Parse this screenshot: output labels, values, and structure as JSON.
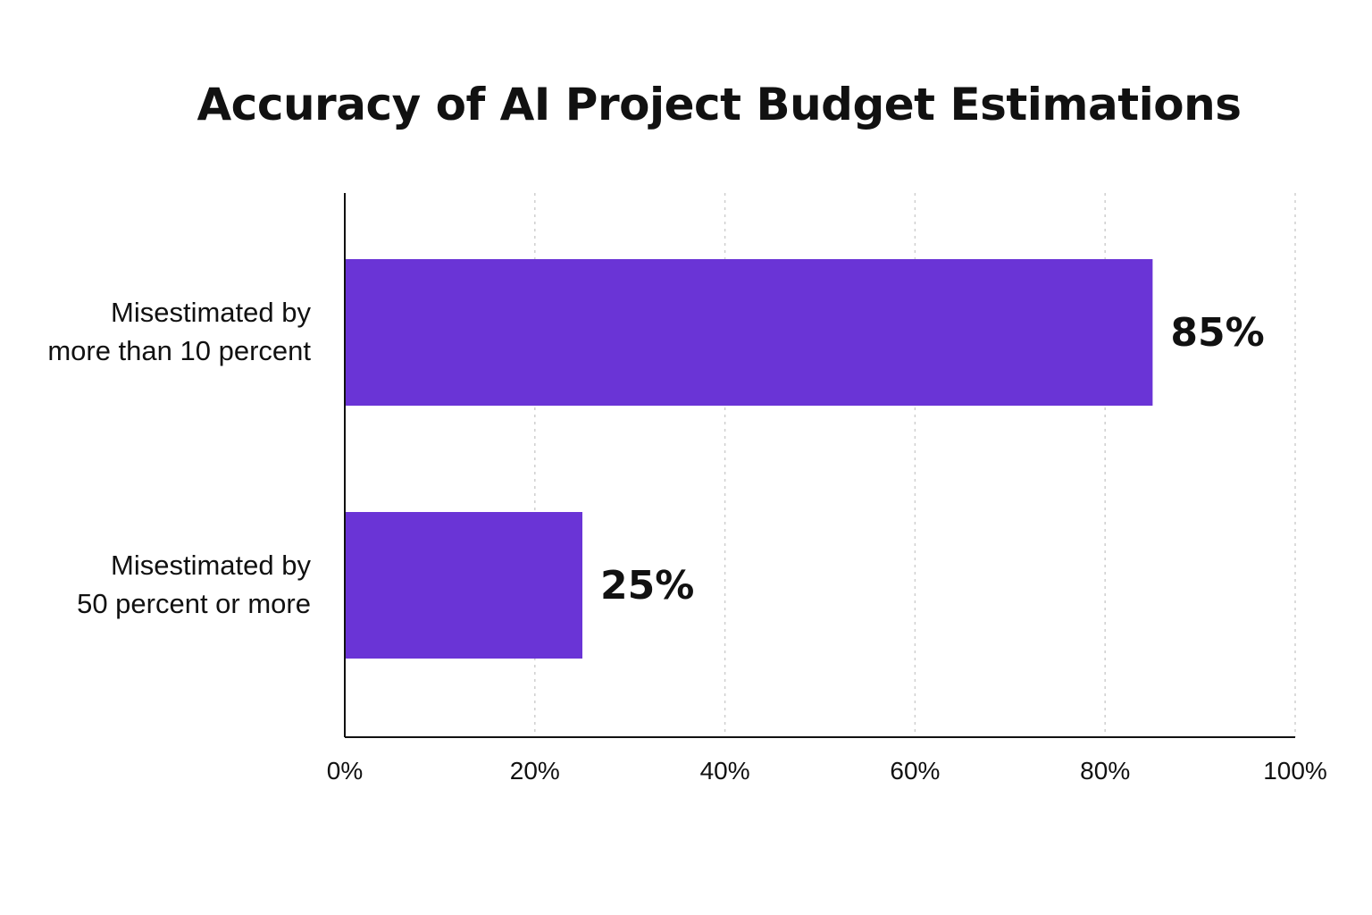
{
  "chart_data": {
    "type": "bar",
    "orientation": "horizontal",
    "title": "Accuracy of AI Project Budget Estimations",
    "categories": [
      [
        "Misestimated by",
        "more than 10 percent"
      ],
      [
        "Misestimated by",
        "50 percent or more"
      ]
    ],
    "values": [
      85,
      25
    ],
    "value_labels": [
      "85%",
      "25%"
    ],
    "xlim": [
      0,
      100
    ],
    "x_ticks": [
      0,
      20,
      40,
      60,
      80,
      100
    ],
    "x_tick_labels": [
      "0%",
      "20%",
      "40%",
      "60%",
      "80%",
      "100%"
    ],
    "xlabel": "",
    "ylabel": "",
    "grid": "vertical-dotted",
    "legend": "none",
    "bar_color": "#6a34d6"
  }
}
